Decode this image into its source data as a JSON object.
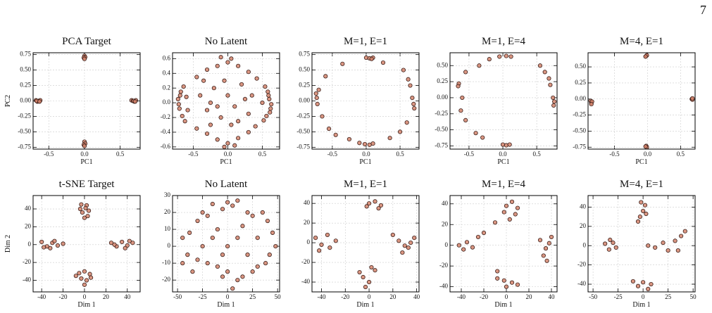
{
  "page_number": "7",
  "chart_data": [
    {
      "type": "scatter",
      "title": "PCA Target",
      "xlabel": "PC1",
      "ylabel": "PC2",
      "color": "#d4846c",
      "edgecolor": "#3a1f1a",
      "grid": true,
      "xlim": [
        -0.72,
        0.78
      ],
      "ylim": [
        -0.78,
        0.78
      ],
      "xticks": [
        -0.5,
        {
          "value": 0,
          "label": "0.0"
        },
        0.5
      ],
      "yticks": [
        0.75,
        {
          "value": 0.5,
          "label": "0.50"
        },
        0.25,
        {
          "value": 0,
          "label": "0.00"
        },
        -0.25,
        {
          "value": -0.5,
          "label": "-0.50"
        },
        -0.75
      ],
      "x": [
        -0.68,
        -0.66,
        -0.64,
        -0.62,
        -0.67,
        -0.63,
        0.66,
        0.68,
        0.7,
        0.72,
        0.69,
        0.71,
        0.0,
        0.01,
        -0.01,
        0.0,
        0.0,
        0.01,
        -0.01,
        0.0
      ],
      "values": [
        0.01,
        -0.01,
        0.0,
        0.01,
        0.0,
        -0.01,
        0.01,
        0.0,
        -0.01,
        0.01,
        0.0,
        -0.01,
        0.73,
        0.71,
        0.7,
        0.68,
        -0.66,
        -0.69,
        -0.71,
        -0.73
      ]
    },
    {
      "type": "scatter",
      "title": "No Latent",
      "xlabel": "PC1",
      "color": "#d4846c",
      "edgecolor": "#3a1f1a",
      "grid": true,
      "xlim": [
        -0.8,
        0.75
      ],
      "ylim": [
        -0.63,
        0.68
      ],
      "xticks": [
        -0.5,
        {
          "value": 0,
          "label": "0.0"
        },
        0.5
      ],
      "yticks": [
        0.6,
        0.4,
        0.2,
        {
          "value": 0,
          "label": "0.0"
        },
        -0.2,
        -0.4,
        -0.6
      ],
      "x": [
        -0.72,
        -0.7,
        -0.68,
        -0.66,
        -0.71,
        -0.64,
        -0.62,
        -0.6,
        -0.58,
        -0.69,
        0.6,
        0.62,
        0.58,
        0.56,
        0.63,
        0.54,
        0.52,
        0.59,
        0.61,
        0.5,
        -0.45,
        -0.3,
        -0.15,
        0.0,
        0.15,
        0.3,
        0.42,
        -0.1,
        0.05,
        -0.35,
        -0.45,
        -0.3,
        -0.15,
        0.0,
        0.15,
        0.3,
        0.4,
        -0.05,
        0.1,
        -0.25,
        -0.4,
        -0.3,
        -0.2,
        -0.1,
        0.0,
        0.1,
        0.2,
        0.3,
        0.35,
        -0.05,
        0.05,
        0.25,
        -0.25,
        0.15,
        -0.15
      ],
      "values": [
        0.05,
        -0.08,
        0.15,
        -0.18,
        -0.02,
        0.22,
        -0.25,
        0.08,
        -0.1,
        0.1,
        0.05,
        -0.08,
        0.15,
        -0.18,
        -0.02,
        0.22,
        -0.24,
        0.1,
        -0.13,
        0.0,
        0.35,
        0.45,
        0.5,
        0.55,
        0.5,
        0.42,
        0.33,
        0.62,
        0.6,
        0.3,
        -0.35,
        -0.42,
        -0.5,
        -0.55,
        -0.48,
        -0.4,
        -0.32,
        -0.6,
        -0.58,
        -0.3,
        0.1,
        -0.1,
        0.2,
        -0.2,
        0.1,
        -0.05,
        0.25,
        -0.15,
        0.1,
        0.3,
        -0.3,
        0.05,
        0.0,
        -0.25,
        -0.05
      ]
    },
    {
      "type": "scatter",
      "title": "M=1, E=1",
      "xlabel": "PC1",
      "color": "#d4846c",
      "edgecolor": "#3a1f1a",
      "grid": true,
      "xlim": [
        -0.8,
        0.78
      ],
      "ylim": [
        -0.78,
        0.78
      ],
      "xticks": [
        -0.5,
        {
          "value": 0,
          "label": "0.0"
        },
        0.5
      ],
      "yticks": [
        0.75,
        {
          "value": 0.5,
          "label": "0.50"
        },
        0.25,
        {
          "value": 0,
          "label": "0.00"
        },
        -0.25,
        {
          "value": -0.5,
          "label": "-0.50"
        },
        -0.75
      ],
      "x": [
        0.0,
        0.05,
        0.1,
        0.08,
        0.25,
        -0.02,
        0.05,
        0.1,
        -0.1,
        -0.25,
        -0.74,
        -0.73,
        -0.72,
        -0.7,
        -0.65,
        -0.55,
        -0.45,
        -0.6,
        0.68,
        0.7,
        0.71,
        0.65,
        0.62,
        0.55,
        0.6,
        0.5,
        0.35,
        -0.35
      ],
      "values": [
        0.7,
        0.69,
        0.7,
        0.68,
        0.62,
        -0.7,
        -0.71,
        -0.69,
        -0.68,
        -0.62,
        0.12,
        0.05,
        -0.05,
        0.18,
        -0.25,
        -0.45,
        -0.55,
        0.4,
        0.05,
        -0.05,
        -0.12,
        0.25,
        0.35,
        0.5,
        -0.35,
        -0.5,
        -0.6,
        0.6
      ]
    },
    {
      "type": "scatter",
      "title": "M=1, E=4",
      "xlabel": "PC1",
      "color": "#d4846c",
      "edgecolor": "#3a1f1a",
      "grid": true,
      "xlim": [
        -0.78,
        0.8
      ],
      "ylim": [
        -0.8,
        0.7
      ],
      "xticks": [
        -0.5,
        {
          "value": 0,
          "label": "0.0"
        },
        0.5
      ],
      "yticks": [
        {
          "value": 0.5,
          "label": "0.50"
        },
        0.25,
        {
          "value": 0,
          "label": "0.00"
        },
        -0.25,
        {
          "value": -0.5,
          "label": "-0.50"
        },
        -0.75
      ],
      "x": [
        -0.05,
        0.05,
        0.12,
        -0.2,
        -0.35,
        -0.55,
        -0.65,
        -0.66,
        -0.6,
        -0.62,
        -0.55,
        -0.4,
        -0.3,
        0.0,
        0.05,
        0.1,
        0.74,
        0.76,
        0.75,
        0.7,
        0.62,
        0.55,
        0.68
      ],
      "values": [
        0.64,
        0.65,
        0.64,
        0.6,
        0.5,
        0.4,
        0.22,
        0.18,
        0.0,
        -0.2,
        -0.35,
        -0.55,
        -0.62,
        -0.73,
        -0.74,
        -0.73,
        0.0,
        -0.06,
        -0.12,
        0.2,
        0.4,
        0.5,
        0.3
      ]
    },
    {
      "type": "scatter",
      "title": "M=4, E=1",
      "xlabel": "PC1",
      "color": "#d4846c",
      "edgecolor": "#3a1f1a",
      "grid": true,
      "xlim": [
        -0.9,
        0.72
      ],
      "ylim": [
        -0.78,
        0.72
      ],
      "xticks": [
        -0.5,
        {
          "value": 0,
          "label": "0.0"
        },
        0.5
      ],
      "yticks": [
        {
          "value": 0.5,
          "label": "0.50"
        },
        0.25,
        {
          "value": 0,
          "label": "0.00"
        },
        -0.25,
        {
          "value": -0.5,
          "label": "-0.50"
        },
        -0.75
      ],
      "x": [
        -0.86,
        -0.85,
        -0.84,
        -0.85,
        0.67,
        0.68,
        0.68,
        -0.02,
        -0.01,
        -0.03,
        -0.02,
        -0.01,
        -0.03
      ],
      "values": [
        -0.03,
        -0.06,
        -0.04,
        -0.08,
        0.0,
        -0.01,
        0.01,
        0.67,
        0.68,
        0.66,
        -0.73,
        -0.75,
        -0.74
      ]
    },
    {
      "type": "scatter",
      "title": "t-SNE Target",
      "xlabel": "Dim 1",
      "ylabel": "Dim 2",
      "color": "#d4846c",
      "edgecolor": "#3a1f1a",
      "grid": true,
      "xlim": [
        -48,
        52
      ],
      "ylim": [
        -53,
        55
      ],
      "xticks": [
        -40,
        -20,
        0,
        20,
        40
      ],
      "yticks": [
        40,
        20,
        0,
        -20,
        -40
      ],
      "x": [
        -3,
        2,
        4,
        -2,
        0,
        3,
        -4,
        1,
        -5,
        0,
        5,
        -3,
        2,
        6,
        -8,
        0,
        -40,
        -35,
        -30,
        -25,
        -20,
        -38,
        -28,
        -32,
        25,
        30,
        35,
        40,
        45,
        28,
        38,
        42
      ],
      "values": [
        45,
        44,
        38,
        36,
        30,
        32,
        40,
        41,
        -32,
        -30,
        -33,
        -38,
        -40,
        -37,
        -35,
        -45,
        3,
        -2,
        2,
        -1,
        1,
        -3,
        4,
        -4,
        2,
        -2,
        3,
        -1,
        2,
        0,
        -4,
        4
      ]
    },
    {
      "type": "scatter",
      "title": "No Latent",
      "xlabel": "Dim 1",
      "color": "#d4846c",
      "edgecolor": "#3a1f1a",
      "grid": true,
      "xlim": [
        -55,
        52
      ],
      "ylim": [
        -27,
        30
      ],
      "xticks": [
        -50,
        -25,
        0,
        25,
        50
      ],
      "yticks": [
        30,
        20,
        10,
        0,
        -10,
        -20
      ],
      "x": [
        -45,
        -40,
        -38,
        -30,
        -25,
        -20,
        -15,
        -5,
        0,
        5,
        10,
        20,
        25,
        35,
        40,
        45,
        48,
        42,
        38,
        30,
        25,
        15,
        10,
        5,
        0,
        -5,
        -10,
        -20,
        -30,
        -35,
        -25,
        -15,
        -10,
        0,
        10,
        15,
        20,
        30,
        -45,
        -5
      ],
      "values": [
        5,
        -5,
        8,
        15,
        20,
        18,
        25,
        22,
        26,
        24,
        27,
        20,
        18,
        20,
        15,
        8,
        0,
        -5,
        -10,
        -12,
        -15,
        -18,
        -20,
        -25,
        -15,
        -18,
        -12,
        -10,
        -8,
        -15,
        0,
        5,
        10,
        0,
        5,
        12,
        -5,
        5,
        -10,
        -5
      ]
    },
    {
      "type": "scatter",
      "title": "M=1, E=1",
      "xlabel": "Dim 1",
      "color": "#d4846c",
      "edgecolor": "#3a1f1a",
      "grid": true,
      "xlim": [
        -48,
        42
      ],
      "ylim": [
        -50,
        48
      ],
      "xticks": [
        -40,
        -20,
        0,
        20,
        40
      ],
      "yticks": [
        40,
        20,
        0,
        -20,
        -40
      ],
      "x": [
        0,
        5,
        10,
        -2,
        8,
        -45,
        -40,
        -35,
        -33,
        -42,
        -28,
        -8,
        -5,
        0,
        -3,
        2,
        5,
        20,
        25,
        30,
        35,
        38,
        28,
        33
      ],
      "values": [
        40,
        42,
        38,
        37,
        35,
        5,
        -2,
        8,
        -5,
        -8,
        2,
        -30,
        -35,
        -40,
        -45,
        -25,
        -28,
        8,
        2,
        -3,
        0,
        5,
        -10,
        -5
      ]
    },
    {
      "type": "scatter",
      "title": "M=1, E=4",
      "xlabel": "Dim 1",
      "color": "#d4846c",
      "edgecolor": "#3a1f1a",
      "grid": true,
      "xlim": [
        -50,
        45
      ],
      "ylim": [
        -45,
        48
      ],
      "xticks": [
        -40,
        -20,
        0,
        20,
        40
      ],
      "yticks": [
        40,
        20,
        0,
        -20,
        -40
      ],
      "x": [
        0,
        5,
        8,
        3,
        -2,
        10,
        -10,
        -42,
        -38,
        -35,
        -30,
        -25,
        -20,
        -8,
        -2,
        5,
        10,
        0,
        -8,
        30,
        35,
        38,
        40,
        33,
        36
      ],
      "values": [
        38,
        42,
        30,
        25,
        32,
        36,
        22,
        0,
        -4,
        3,
        -2,
        8,
        12,
        -32,
        -34,
        -36,
        -38,
        -40,
        -25,
        5,
        -3,
        2,
        8,
        -10,
        -15
      ]
    },
    {
      "type": "scatter",
      "title": "M=4, E=1",
      "xlabel": "Dim 1",
      "color": "#d4846c",
      "edgecolor": "#3a1f1a",
      "grid": true,
      "xlim": [
        -55,
        52
      ],
      "ylim": [
        -48,
        52
      ],
      "xticks": [
        -50,
        -25,
        0,
        25,
        50
      ],
      "yticks": [
        40,
        20,
        0,
        -20,
        -40
      ],
      "x": [
        -2,
        2,
        0,
        -3,
        3,
        -5,
        -38,
        -34,
        -30,
        -27,
        -33,
        -10,
        -5,
        0,
        5,
        8,
        5,
        12,
        20,
        25,
        32,
        38,
        42,
        35
      ],
      "values": [
        45,
        42,
        36,
        30,
        33,
        25,
        2,
        -4,
        3,
        -2,
        6,
        -37,
        -42,
        -38,
        -45,
        -40,
        0,
        -2,
        3,
        -5,
        5,
        10,
        15,
        -5
      ]
    }
  ]
}
